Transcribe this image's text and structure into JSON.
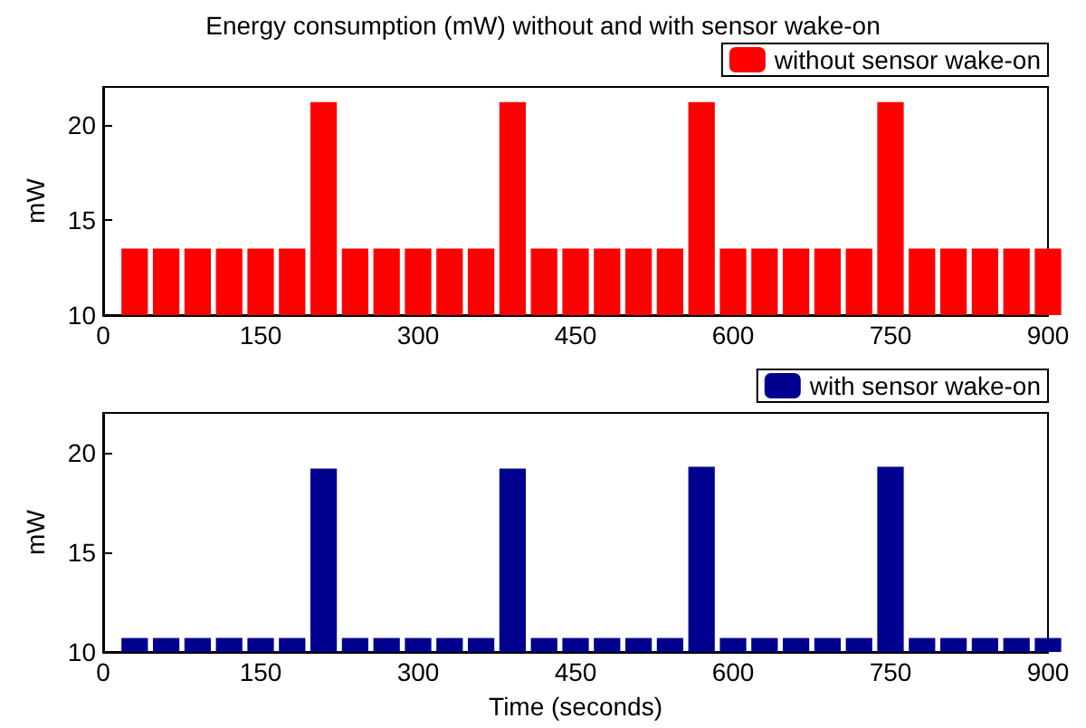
{
  "chart_data": [
    {
      "type": "bar",
      "title": "Energy consumption (mW) without and with sensor wake-on",
      "ylabel": "mW",
      "x": [
        30,
        60,
        90,
        120,
        150,
        180,
        210,
        240,
        270,
        300,
        330,
        360,
        390,
        420,
        450,
        480,
        510,
        540,
        570,
        600,
        630,
        660,
        690,
        720,
        750,
        780,
        810,
        840,
        870,
        900
      ],
      "series": [
        {
          "name": "without sensor wake-on",
          "color": "#ff0000",
          "values": [
            13.5,
            13.5,
            13.5,
            13.5,
            13.5,
            13.5,
            21.2,
            13.5,
            13.5,
            13.5,
            13.5,
            13.5,
            21.2,
            13.5,
            13.5,
            13.5,
            13.5,
            13.5,
            21.2,
            13.5,
            13.5,
            13.5,
            13.5,
            13.5,
            21.2,
            13.5,
            13.5,
            13.5,
            13.5,
            13.5
          ]
        }
      ],
      "xlim": [
        0,
        900
      ],
      "xticks": [
        0,
        150,
        300,
        450,
        600,
        750,
        900
      ],
      "ylim": [
        10,
        22
      ],
      "yticks": [
        10,
        15,
        20
      ],
      "legend": "top right"
    },
    {
      "type": "bar",
      "xlabel": "Time (seconds)",
      "ylabel": "mW",
      "x": [
        30,
        60,
        90,
        120,
        150,
        180,
        210,
        240,
        270,
        300,
        330,
        360,
        390,
        420,
        450,
        480,
        510,
        540,
        570,
        600,
        630,
        660,
        690,
        720,
        750,
        780,
        810,
        840,
        870,
        900
      ],
      "series": [
        {
          "name": "with sensor wake-on",
          "color": "#00008f",
          "values": [
            10.7,
            10.7,
            10.7,
            10.7,
            10.7,
            10.7,
            19.2,
            10.7,
            10.7,
            10.7,
            10.7,
            10.7,
            19.2,
            10.7,
            10.7,
            10.7,
            10.7,
            10.7,
            19.3,
            10.7,
            10.7,
            10.7,
            10.7,
            10.7,
            19.3,
            10.7,
            10.7,
            10.7,
            10.7,
            10.7
          ]
        }
      ],
      "xlim": [
        0,
        900
      ],
      "xticks": [
        0,
        150,
        300,
        450,
        600,
        750,
        900
      ],
      "ylim": [
        10,
        22
      ],
      "yticks": [
        10,
        15,
        20
      ],
      "legend": "top right"
    }
  ]
}
